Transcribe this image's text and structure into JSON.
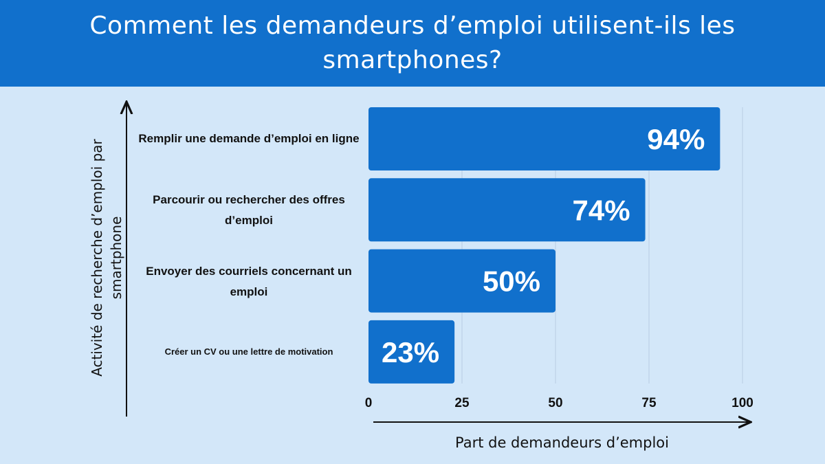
{
  "title": "Comment les demandeurs d’emploi utilisent-ils les smartphones?",
  "colors": {
    "header": "#1170cc",
    "bar": "#1170cc",
    "background": "#d3e7f9"
  },
  "chart_data": {
    "type": "bar",
    "orientation": "horizontal",
    "title": "Comment les demandeurs d’emploi utilisent-ils les smartphones?",
    "categories": [
      "Remplir une demande d’emploi en ligne",
      "Parcourir ou rechercher des offres d’emploi",
      "Envoyer des courriels concernant un emploi",
      "Créer un CV ou une lettre de motivation"
    ],
    "values": [
      94,
      74,
      50,
      23
    ],
    "data_labels": [
      "94%",
      "74%",
      "50%",
      "23%"
    ],
    "xlabel": "Part de demandeurs d’emploi",
    "ylabel": "Activité de recherche d’emploi par smartphone",
    "xlim": [
      0,
      100
    ],
    "xticks": [
      "0",
      "25",
      "50",
      "75",
      "100"
    ],
    "grid": "vertical"
  }
}
